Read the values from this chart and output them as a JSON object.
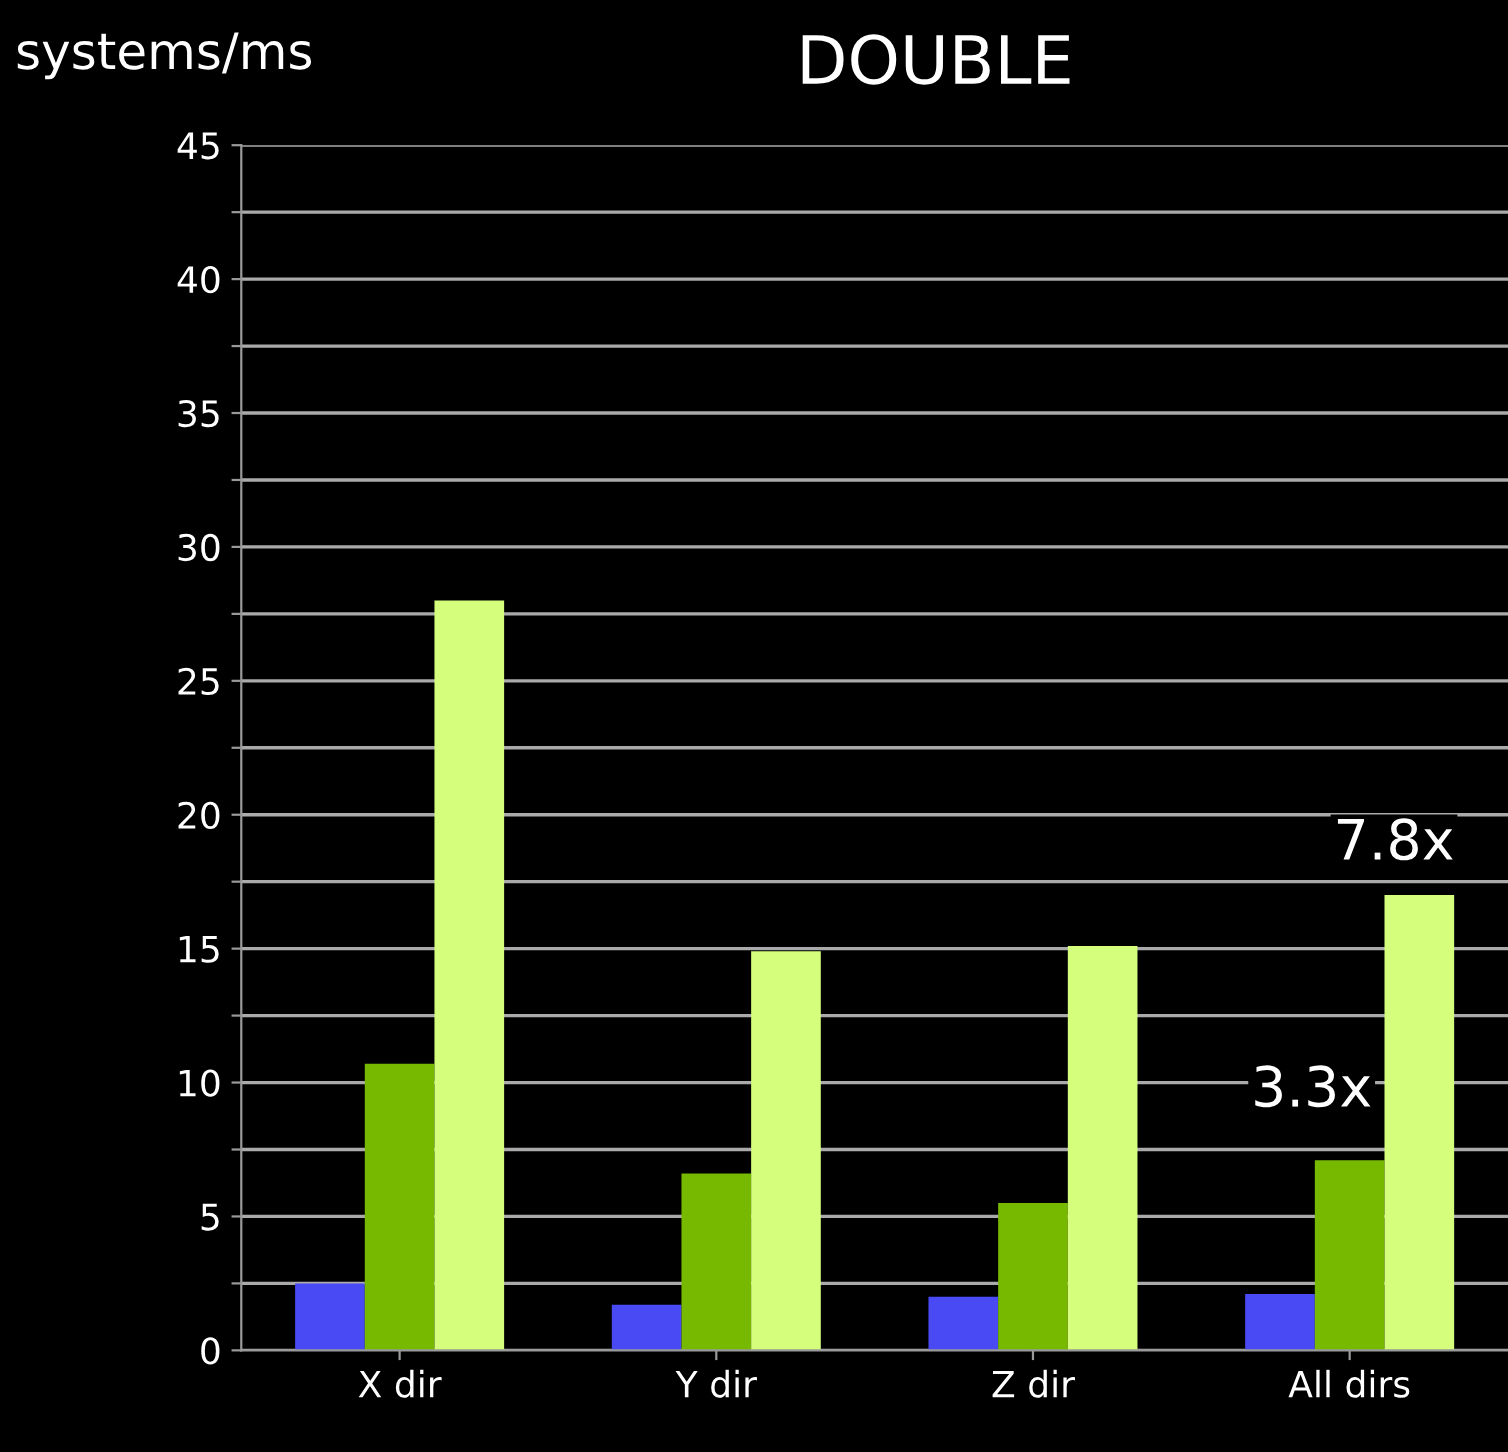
{
  "chart_data": {
    "type": "bar",
    "title": "DOUBLE",
    "ylabel": "systems/ms",
    "categories": [
      "X dir",
      "Y dir",
      "Z dir",
      "All dirs"
    ],
    "series": [
      {
        "color": "#4a4af5",
        "values": [
          2.5,
          1.7,
          2.0,
          2.1
        ]
      },
      {
        "color": "#76b900",
        "values": [
          10.7,
          6.6,
          5.5,
          7.1
        ]
      },
      {
        "color": "#d4fe7c",
        "values": [
          28.0,
          14.9,
          15.1,
          17.0
        ]
      }
    ],
    "ylim": [
      0,
      45
    ],
    "yticks": [
      0,
      {
        "value": 2.5,
        "label": null
      },
      5,
      {
        "value": 7.5,
        "label": null
      },
      10,
      {
        "value": 12.5,
        "label": null
      },
      15,
      {
        "value": 17.5,
        "label": null
      },
      20,
      {
        "value": 22.5,
        "label": null
      },
      25,
      {
        "value": 27.5,
        "label": null
      },
      30,
      {
        "value": 32.5,
        "label": null
      },
      35,
      {
        "value": 37.5,
        "label": null
      },
      40,
      {
        "value": 42.5,
        "label": null
      },
      45
    ],
    "grid": "y",
    "annotations": [
      "3.3x",
      "7.8x"
    ]
  }
}
